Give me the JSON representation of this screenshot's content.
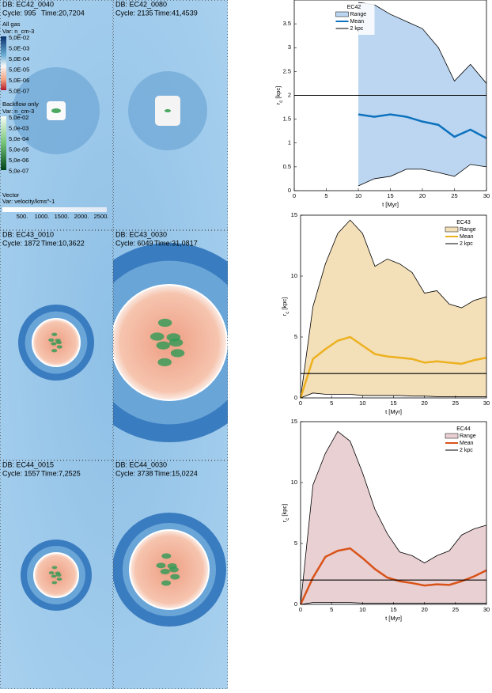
{
  "panels": [
    {
      "db": "DB: EC42_0040",
      "cycle": "Cycle: 995",
      "time": "Time:20,7204"
    },
    {
      "db": "DB: EC42_0080",
      "cycle": "Cycle: 2135",
      "time": "Time:41,4539"
    },
    {
      "db": "DB: EC43_0010",
      "cycle": "Cycle: 1872",
      "time": "Time:10,3622"
    },
    {
      "db": "DB: EC43_0030",
      "cycle": "Cycle: 6049",
      "time": "Time:31,0817"
    },
    {
      "db": "DB: EC44_0015",
      "cycle": "Cycle: 1557",
      "time": "Time:7,2525"
    },
    {
      "db": "DB: EC44_0030",
      "cycle": "Cycle: 3738",
      "time": "Time:15,0224"
    }
  ],
  "colorbar_gas": {
    "title": "All gas",
    "var": "Var: n_cm-3",
    "ticks": [
      "5,0E-02",
      "5,0E-03",
      "5,0E-04",
      "5,0E-05",
      "5,0E-06",
      "5,0E-07"
    ]
  },
  "colorbar_backflow": {
    "title": "Backflow only",
    "var": "Var: n_cm-3",
    "ticks": [
      "5,0e-02",
      "5,0e-03",
      "5,0e-04",
      "5,0e-05",
      "5,0e-06",
      "5,0e-07"
    ]
  },
  "vector": {
    "title": "Vector",
    "var": "Var: velocity/kms^-1",
    "ticks": [
      "500.",
      "1000.",
      "1500.",
      "2000.",
      "2500."
    ]
  },
  "chart_data": [
    {
      "type": "line",
      "legend_title": "EC42",
      "legend": "upper center",
      "xlabel": "t [Myr]",
      "ylabel": {
        "main": "r",
        "sub": "c",
        "unit": " [kpc]"
      },
      "xlim": [
        0,
        30
      ],
      "xticks": [
        0,
        5,
        10,
        15,
        20,
        25,
        30
      ],
      "ylim": [
        0,
        4
      ],
      "yticks": [
        0,
        0.5,
        1,
        1.5,
        2,
        2.5,
        3,
        3.5
      ],
      "series": [
        {
          "name": "Range",
          "color": "#bcd6f2",
          "x": [
            10,
            12.5,
            15,
            17.5,
            20,
            22.5,
            25,
            27.5,
            30
          ],
          "values": [
            3.95,
            3.9,
            3.7,
            3.55,
            3.4,
            3.0,
            2.3,
            2.65,
            2.25
          ],
          "low": [
            0.1,
            0.25,
            0.3,
            0.45,
            0.45,
            0.38,
            0.3,
            0.55,
            0.5
          ]
        },
        {
          "name": "Mean",
          "color": "#0d72bd",
          "x": [
            10,
            12.5,
            15,
            17.5,
            20,
            22.5,
            25,
            27.5,
            30
          ],
          "values": [
            1.6,
            1.55,
            1.6,
            1.55,
            1.45,
            1.38,
            1.13,
            1.28,
            1.1
          ]
        },
        {
          "name": "2 kpc",
          "color": "#000000",
          "x": [
            0,
            30
          ],
          "values": [
            2,
            2
          ]
        }
      ]
    },
    {
      "type": "line",
      "legend_title": "EC43",
      "legend": "upper right",
      "xlabel": "t [Myr]",
      "ylabel": {
        "main": "r",
        "sub": "c",
        "unit": " [kpc]"
      },
      "xlim": [
        0,
        30
      ],
      "xticks": [
        0,
        5,
        10,
        15,
        20,
        25,
        30
      ],
      "ylim": [
        0,
        15
      ],
      "yticks": [
        0,
        5,
        10,
        15
      ],
      "series": [
        {
          "name": "Range",
          "color": "#f3dfb8",
          "x": [
            0,
            2,
            4,
            6,
            8,
            10,
            12,
            14,
            16,
            18,
            20,
            22,
            24,
            26,
            28,
            30
          ],
          "values": [
            0,
            7.5,
            11,
            13.5,
            14.6,
            13.5,
            10.8,
            11.4,
            11,
            10.3,
            8.6,
            8.8,
            7.7,
            7.4,
            8,
            8.3
          ],
          "low": [
            0,
            0.4,
            0.3,
            0.3,
            0.3,
            0.2,
            0.2,
            0.2,
            0.2,
            0.15,
            0.15,
            0.1,
            0.1,
            0.1,
            0.1,
            0.1
          ]
        },
        {
          "name": "Mean",
          "color": "#edb120",
          "x": [
            0,
            2,
            4,
            6,
            8,
            10,
            12,
            14,
            16,
            18,
            20,
            22,
            24,
            26,
            28,
            30
          ],
          "values": [
            0,
            3.2,
            4,
            4.7,
            5,
            4.3,
            3.6,
            3.4,
            3.3,
            3.2,
            2.9,
            3,
            2.9,
            2.8,
            3.1,
            3.3
          ]
        },
        {
          "name": "2 kpc",
          "color": "#000000",
          "x": [
            0,
            30
          ],
          "values": [
            2,
            2
          ]
        }
      ]
    },
    {
      "type": "line",
      "legend_title": "EC44",
      "legend": "upper right",
      "xlabel": "t [Myr]",
      "ylabel": {
        "main": "r",
        "sub": "c",
        "unit": " [kpc]"
      },
      "xlim": [
        0,
        30
      ],
      "xticks": [
        0,
        5,
        10,
        15,
        20,
        25,
        30
      ],
      "ylim": [
        0,
        15
      ],
      "yticks": [
        0,
        5,
        10,
        15
      ],
      "series": [
        {
          "name": "Range",
          "color": "#e9d0d3",
          "x": [
            0,
            2,
            4,
            6,
            8,
            10,
            12,
            14,
            16,
            18,
            20,
            22,
            24,
            26,
            28,
            30
          ],
          "values": [
            0,
            9.8,
            12.4,
            14.2,
            13.4,
            10.8,
            7.8,
            5.8,
            4.3,
            4,
            3.4,
            4,
            4.4,
            5.7,
            6.2,
            6.5
          ],
          "low": [
            0,
            0.15,
            0.15,
            0.15,
            0.15,
            0.1,
            0.1,
            0.1,
            0.1,
            0.1,
            0.1,
            0.1,
            0.1,
            0.1,
            0.1,
            0.1
          ]
        },
        {
          "name": "Mean",
          "color": "#d95319",
          "x": [
            0,
            2,
            4,
            6,
            8,
            10,
            12,
            14,
            16,
            18,
            20,
            22,
            24,
            26,
            28,
            30
          ],
          "values": [
            0,
            2.2,
            3.9,
            4.4,
            4.6,
            3.8,
            2.9,
            2.2,
            1.9,
            1.75,
            1.55,
            1.65,
            1.6,
            1.9,
            2.3,
            2.8
          ]
        },
        {
          "name": "2 kpc",
          "color": "#000000",
          "x": [
            0,
            30
          ],
          "values": [
            2,
            2
          ]
        }
      ]
    }
  ]
}
